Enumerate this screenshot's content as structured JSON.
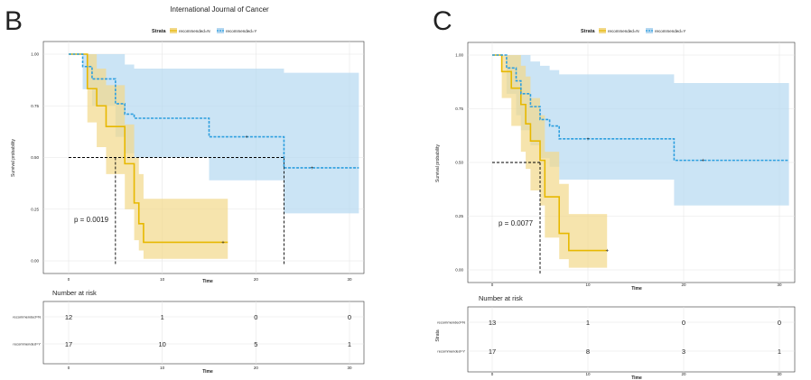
{
  "header": {
    "journal": "International Journal of Cancer"
  },
  "colors": {
    "n": "#E7B800",
    "y": "#2E9FDF",
    "ci_n": "#F2D98A",
    "ci_y": "#B5D8F1",
    "grid": "#E6E6E6"
  },
  "chart_data": [
    {
      "panel_label": "B",
      "type": "line",
      "title": "",
      "xlabel": "Time",
      "ylabel": "Survival probability",
      "xlim": [
        0,
        31
      ],
      "ylim": [
        0,
        1
      ],
      "x_ticks": [
        0,
        10,
        20,
        30
      ],
      "y_ticks": [
        "0.00",
        "0.25",
        "0.50",
        "0.75",
        "1.00"
      ],
      "legend_title": "Strata",
      "legend": [
        "recommended=N",
        "recommended=Y"
      ],
      "pvalue": "p = 0.0019",
      "median_lines": [
        5,
        23
      ],
      "series": [
        {
          "name": "recommended=N",
          "steps": [
            [
              0,
              1.0
            ],
            [
              2,
              0.833
            ],
            [
              3,
              0.75
            ],
            [
              4,
              0.65
            ],
            [
              6,
              0.47
            ],
            [
              7,
              0.28
            ],
            [
              7.5,
              0.18
            ],
            [
              8,
              0.09
            ],
            [
              17,
              0.09
            ]
          ],
          "upper": [
            [
              0,
              1.0
            ],
            [
              2,
              1.0
            ],
            [
              3,
              0.93
            ],
            [
              4,
              0.85
            ],
            [
              6,
              0.66
            ],
            [
              7,
              0.5
            ],
            [
              7.5,
              0.42
            ],
            [
              8,
              0.3
            ],
            [
              17,
              0.3
            ]
          ],
          "lower": [
            [
              0,
              1.0
            ],
            [
              2,
              0.67
            ],
            [
              3,
              0.55
            ],
            [
              4,
              0.42
            ],
            [
              6,
              0.25
            ],
            [
              7,
              0.1
            ],
            [
              7.5,
              0.05
            ],
            [
              8,
              0.01
            ],
            [
              17,
              0.01
            ]
          ],
          "censor": [
            16.5
          ]
        },
        {
          "name": "recommended=Y",
          "steps": [
            [
              0,
              1.0
            ],
            [
              1.5,
              0.94
            ],
            [
              2.5,
              0.88
            ],
            [
              5,
              0.76
            ],
            [
              6,
              0.71
            ],
            [
              7,
              0.69
            ],
            [
              15,
              0.6
            ],
            [
              23,
              0.45
            ],
            [
              31,
              0.45
            ]
          ],
          "upper": [
            [
              0,
              1.0
            ],
            [
              1.5,
              1.0
            ],
            [
              2.5,
              1.0
            ],
            [
              5,
              1.0
            ],
            [
              6,
              0.95
            ],
            [
              7,
              0.93
            ],
            [
              15,
              0.93
            ],
            [
              23,
              0.91
            ],
            [
              31,
              0.91
            ]
          ],
          "lower": [
            [
              0,
              1.0
            ],
            [
              1.5,
              0.83
            ],
            [
              2.5,
              0.75
            ],
            [
              5,
              0.6
            ],
            [
              6,
              0.52
            ],
            [
              7,
              0.5
            ],
            [
              15,
              0.39
            ],
            [
              23,
              0.23
            ],
            [
              31,
              0.23
            ]
          ],
          "censor": [
            19,
            26
          ]
        }
      ],
      "risk_table": {
        "title": "Number at risk",
        "xlabel": "Time",
        "ylabel": "",
        "rows": [
          {
            "label": "recommended=N",
            "values": [
              "12",
              "1",
              "0",
              "0"
            ]
          },
          {
            "label": "recommended=Y",
            "values": [
              "17",
              "10",
              "5",
              "1"
            ]
          }
        ]
      }
    },
    {
      "panel_label": "C",
      "type": "line",
      "title": "",
      "xlabel": "Time",
      "ylabel": "Survival probability",
      "xlim": [
        0,
        31
      ],
      "ylim": [
        0,
        1
      ],
      "x_ticks": [
        0,
        10,
        20,
        30
      ],
      "y_ticks": [
        "0.00",
        "0.25",
        "0.50",
        "0.75",
        "1.00"
      ],
      "legend_title": "Strata",
      "legend": [
        "recommended=N",
        "recommended=Y"
      ],
      "pvalue": "p = 0.0077",
      "median_lines": [
        5
      ],
      "series": [
        {
          "name": "recommended=N",
          "steps": [
            [
              0,
              1.0
            ],
            [
              1,
              0.923
            ],
            [
              2,
              0.846
            ],
            [
              3,
              0.77
            ],
            [
              3.5,
              0.68
            ],
            [
              4,
              0.6
            ],
            [
              5,
              0.51
            ],
            [
              5.5,
              0.34
            ],
            [
              7,
              0.17
            ],
            [
              8,
              0.09
            ],
            [
              12,
              0.09
            ]
          ],
          "upper": [
            [
              0,
              1.0
            ],
            [
              1,
              1.0
            ],
            [
              2,
              1.0
            ],
            [
              3,
              0.95
            ],
            [
              3.5,
              0.9
            ],
            [
              4,
              0.8
            ],
            [
              5,
              0.72
            ],
            [
              5.5,
              0.55
            ],
            [
              7,
              0.4
            ],
            [
              8,
              0.26
            ],
            [
              12,
              0.26
            ]
          ],
          "lower": [
            [
              0,
              1.0
            ],
            [
              1,
              0.8
            ],
            [
              2,
              0.67
            ],
            [
              3,
              0.55
            ],
            [
              3.5,
              0.47
            ],
            [
              4,
              0.37
            ],
            [
              5,
              0.3
            ],
            [
              5.5,
              0.15
            ],
            [
              7,
              0.05
            ],
            [
              8,
              0.01
            ],
            [
              12,
              0.01
            ]
          ],
          "censor": [
            12
          ]
        },
        {
          "name": "recommended=Y",
          "steps": [
            [
              0,
              1.0
            ],
            [
              1.5,
              0.94
            ],
            [
              2.5,
              0.88
            ],
            [
              3,
              0.82
            ],
            [
              4,
              0.76
            ],
            [
              5,
              0.7
            ],
            [
              6,
              0.67
            ],
            [
              7,
              0.61
            ],
            [
              19,
              0.51
            ],
            [
              31,
              0.51
            ]
          ],
          "upper": [
            [
              0,
              1.0
            ],
            [
              1.5,
              1.0
            ],
            [
              2.5,
              1.0
            ],
            [
              3,
              1.0
            ],
            [
              4,
              0.97
            ],
            [
              5,
              0.95
            ],
            [
              6,
              0.93
            ],
            [
              7,
              0.91
            ],
            [
              19,
              0.87
            ],
            [
              31,
              0.87
            ]
          ],
          "lower": [
            [
              0,
              1.0
            ],
            [
              1.5,
              0.82
            ],
            [
              2.5,
              0.72
            ],
            [
              3,
              0.65
            ],
            [
              4,
              0.58
            ],
            [
              5,
              0.52
            ],
            [
              6,
              0.48
            ],
            [
              7,
              0.42
            ],
            [
              19,
              0.3
            ],
            [
              31,
              0.3
            ]
          ],
          "censor": [
            10,
            22
          ]
        }
      ],
      "risk_table": {
        "title": "Number at risk",
        "xlabel": "Time",
        "ylabel": "Strata",
        "rows": [
          {
            "label": "recommended=N",
            "values": [
              "13",
              "1",
              "0",
              "0"
            ]
          },
          {
            "label": "recommended=Y",
            "values": [
              "17",
              "8",
              "3",
              "1"
            ]
          }
        ]
      }
    }
  ]
}
